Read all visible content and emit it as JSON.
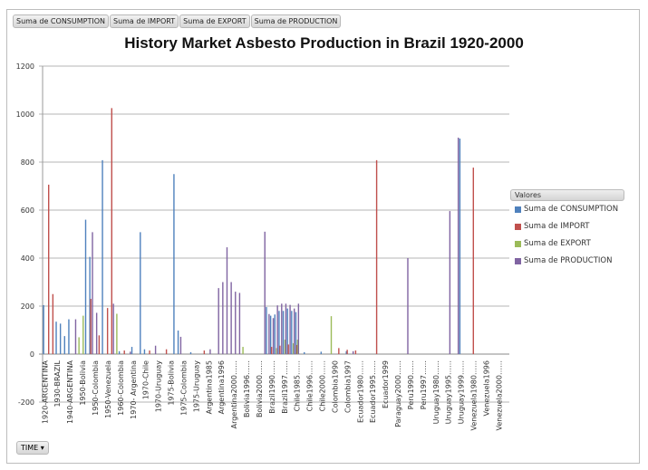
{
  "field_buttons": [
    "Suma de CONSUMPTION",
    "Suma de IMPORT",
    "Suma de EXPORT",
    "Suma de PRODUCTION"
  ],
  "time_button": {
    "label": "TIME",
    "icon": "dropdown-arrow-icon"
  },
  "chart_data": {
    "type": "bar",
    "title": "History Market Asbesto  Production in Brazil 1920-2000",
    "xlabel": "",
    "ylabel": "",
    "ylim": [
      -200,
      1200
    ],
    "yticks": [
      -200,
      0,
      200,
      400,
      600,
      800,
      1000,
      1200
    ],
    "grid": true,
    "legend_title": "Valores",
    "legend_position": "right",
    "category_count": 111,
    "tick_labels": [
      "1920-ARGENTINA",
      "1930-BRAZIL",
      "1940-ARGENTINA",
      "1950-Bolivia",
      "1950-Colombia",
      "1950-Venezuela",
      "1960-Colombia",
      "1970- Argentina",
      "1970-Chile",
      "1970-Uruguay",
      "1975-Bolivia",
      "1975-Colombia",
      "1975-Uruguay",
      "Argentina1985",
      "Argentina1996",
      "Argentina2000……",
      "Bolivia1996……",
      "Bolivia2000……",
      "Brazil1990……",
      "Brazil1997……",
      "Chile1985……",
      "Chile1996……",
      "Chile2000……",
      "Colombia1990",
      "Colombia1997",
      "Ecuador1980……",
      "Ecuador1995……",
      "Ecuador1999",
      "Paraguay2000……",
      "Peru1990……",
      "Peru1997……",
      "Uruguay1980……",
      "Uruguay1995……",
      "Uruguay1999……",
      "Venezuela1980……",
      "Venezuela1996",
      "Venezuela2000……"
    ],
    "series": [
      {
        "name": "Suma de CONSUMPTION",
        "color": "#4f81bd",
        "points": [
          [
            0,
            204
          ],
          [
            3,
            135
          ],
          [
            4,
            127
          ],
          [
            5,
            75
          ],
          [
            6,
            145
          ],
          [
            10,
            560
          ],
          [
            11,
            405
          ],
          [
            14,
            808
          ],
          [
            18,
            12
          ],
          [
            21,
            30
          ],
          [
            23,
            508
          ],
          [
            24,
            20
          ],
          [
            31,
            750
          ],
          [
            32,
            98
          ],
          [
            35,
            8
          ],
          [
            53,
            196
          ],
          [
            54,
            160
          ],
          [
            55,
            165
          ],
          [
            56,
            180
          ],
          [
            57,
            180
          ],
          [
            58,
            190
          ],
          [
            59,
            180
          ],
          [
            60,
            175
          ],
          [
            62,
            8
          ],
          [
            66,
            10
          ],
          [
            72,
            12
          ],
          [
            99,
            898
          ]
        ]
      },
      {
        "name": "Suma de IMPORT",
        "color": "#c0504d",
        "points": [
          [
            1,
            706
          ],
          [
            2,
            250
          ],
          [
            11,
            230
          ],
          [
            13,
            78
          ],
          [
            15,
            192
          ],
          [
            16,
            1025
          ],
          [
            19,
            15
          ],
          [
            25,
            15
          ],
          [
            29,
            20
          ],
          [
            38,
            15
          ],
          [
            54,
            30
          ],
          [
            56,
            35
          ],
          [
            58,
            40
          ],
          [
            60,
            38
          ],
          [
            70,
            25
          ],
          [
            72,
            18
          ],
          [
            74,
            15
          ],
          [
            79,
            808
          ],
          [
            102,
            777
          ]
        ]
      },
      {
        "name": "Suma de EXPORT",
        "color": "#9bbb59",
        "points": [
          [
            8,
            70
          ],
          [
            9,
            160
          ],
          [
            17,
            168
          ],
          [
            47,
            30
          ],
          [
            55,
            25
          ],
          [
            57,
            60
          ],
          [
            59,
            45
          ],
          [
            60,
            60
          ],
          [
            68,
            158
          ]
        ]
      },
      {
        "name": "Suma de PRODUCTION",
        "color": "#8064a2",
        "points": [
          [
            7,
            145
          ],
          [
            12,
            172
          ],
          [
            11,
            508
          ],
          [
            16,
            210
          ],
          [
            20,
            10
          ],
          [
            26,
            35
          ],
          [
            32,
            72
          ],
          [
            39,
            20
          ],
          [
            41,
            275
          ],
          [
            42,
            300
          ],
          [
            43,
            445
          ],
          [
            44,
            300
          ],
          [
            45,
            260
          ],
          [
            46,
            255
          ],
          [
            52,
            510
          ],
          [
            53,
            167
          ],
          [
            54,
            150
          ],
          [
            55,
            203
          ],
          [
            56,
            210
          ],
          [
            57,
            210
          ],
          [
            58,
            205
          ],
          [
            59,
            190
          ],
          [
            60,
            210
          ],
          [
            73,
            12
          ],
          [
            86,
            400
          ],
          [
            96,
            596
          ],
          [
            98,
            902
          ]
        ]
      }
    ]
  }
}
